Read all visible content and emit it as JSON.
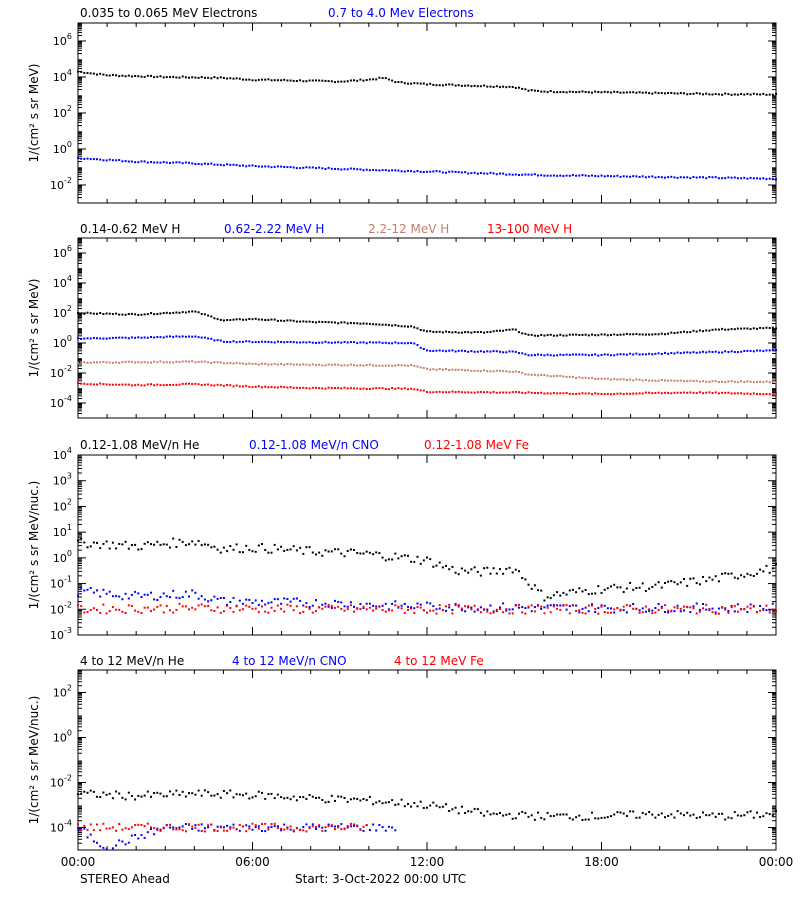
{
  "footer": {
    "left": "STEREO Ahead",
    "right": "Start:  3-Oct-2022 00:00 UTC"
  },
  "colors": {
    "black": "#000000",
    "blue": "#0000ff",
    "tan": "#c87d6a",
    "red": "#ff0000"
  },
  "chart_data": [
    {
      "type": "scatter",
      "ylabel": "1/(cm² s sr MeV)",
      "ylog": true,
      "ylim_exp": [
        -3,
        7
      ],
      "y_ticks_exp": [
        -2,
        0,
        2,
        4,
        6
      ],
      "series": [
        {
          "name": "0.035 to 0.065 MeV Electrons",
          "color": "#000000",
          "points": [
            [
              0,
              4.3
            ],
            [
              1,
              4.1
            ],
            [
              2,
              4.05
            ],
            [
              3,
              4.0
            ],
            [
              4,
              3.98
            ],
            [
              5,
              3.95
            ],
            [
              6,
              3.85
            ],
            [
              7,
              3.82
            ],
            [
              8,
              3.78
            ],
            [
              9,
              3.75
            ],
            [
              10,
              3.85
            ],
            [
              10.5,
              3.95
            ],
            [
              11,
              3.7
            ],
            [
              12,
              3.6
            ],
            [
              13,
              3.55
            ],
            [
              14,
              3.5
            ],
            [
              15,
              3.45
            ],
            [
              15.5,
              3.25
            ],
            [
              16,
              3.2
            ],
            [
              18,
              3.15
            ],
            [
              20,
              3.1
            ],
            [
              22,
              3.05
            ],
            [
              24,
              3.03
            ]
          ]
        },
        {
          "name": "0.7 to 4.0 Mev Electrons",
          "color": "#0000ff",
          "points": [
            [
              0,
              -0.5
            ],
            [
              2,
              -0.7
            ],
            [
              4,
              -0.8
            ],
            [
              6,
              -0.95
            ],
            [
              8,
              -1.05
            ],
            [
              10,
              -1.15
            ],
            [
              12,
              -1.25
            ],
            [
              14,
              -1.35
            ],
            [
              16,
              -1.45
            ],
            [
              18,
              -1.5
            ],
            [
              20,
              -1.55
            ],
            [
              22,
              -1.6
            ],
            [
              24,
              -1.65
            ]
          ]
        }
      ]
    },
    {
      "type": "scatter",
      "ylabel": "1/(cm² s sr MeV)",
      "ylog": true,
      "ylim_exp": [
        -5,
        7
      ],
      "y_ticks_exp": [
        -4,
        -2,
        0,
        2,
        4,
        6
      ],
      "series": [
        {
          "name": "0.14-0.62 MeV H",
          "color": "#000000",
          "points": [
            [
              0,
              2.0
            ],
            [
              2,
              1.9
            ],
            [
              4,
              2.1
            ],
            [
              5,
              1.5
            ],
            [
              6,
              1.6
            ],
            [
              8,
              1.4
            ],
            [
              10,
              1.3
            ],
            [
              11.5,
              1.1
            ],
            [
              12,
              0.75
            ],
            [
              14,
              0.7
            ],
            [
              15,
              0.9
            ],
            [
              15.5,
              0.5
            ],
            [
              18,
              0.55
            ],
            [
              20,
              0.6
            ],
            [
              22,
              0.9
            ],
            [
              24,
              1.0
            ]
          ]
        },
        {
          "name": "0.62-2.22 MeV H",
          "color": "#0000ff",
          "points": [
            [
              0,
              0.3
            ],
            [
              2,
              0.35
            ],
            [
              4,
              0.45
            ],
            [
              5,
              0.1
            ],
            [
              8,
              0.05
            ],
            [
              11.5,
              0.0
            ],
            [
              12,
              -0.5
            ],
            [
              15,
              -0.6
            ],
            [
              15.5,
              -0.8
            ],
            [
              18,
              -0.8
            ],
            [
              22,
              -0.6
            ],
            [
              24,
              -0.5
            ]
          ]
        },
        {
          "name": "2.2-12 MeV H",
          "color": "#c87d6a",
          "points": [
            [
              0,
              -1.3
            ],
            [
              4,
              -1.25
            ],
            [
              6,
              -1.4
            ],
            [
              8,
              -1.45
            ],
            [
              11.5,
              -1.5
            ],
            [
              12,
              -1.75
            ],
            [
              15,
              -1.9
            ],
            [
              15.5,
              -2.1
            ],
            [
              18,
              -2.4
            ],
            [
              21,
              -2.55
            ],
            [
              24,
              -2.6
            ]
          ]
        },
        {
          "name": "13-100 MeV H",
          "color": "#ff0000",
          "points": [
            [
              0,
              -2.7
            ],
            [
              2,
              -2.8
            ],
            [
              4,
              -2.75
            ],
            [
              6,
              -2.9
            ],
            [
              8,
              -3.0
            ],
            [
              11.5,
              -3.05
            ],
            [
              12,
              -3.25
            ],
            [
              15,
              -3.3
            ],
            [
              18,
              -3.4
            ],
            [
              21,
              -3.3
            ],
            [
              24,
              -3.4
            ]
          ]
        }
      ]
    },
    {
      "type": "scatter",
      "ylabel": "1/(cm² s sr MeV/nuc.)",
      "ylog": true,
      "ylim_exp": [
        -3,
        4
      ],
      "y_ticks_exp": [
        -3,
        -2,
        -1,
        0,
        1,
        2,
        3,
        4
      ],
      "series": [
        {
          "name": "0.12-1.08 MeV/n He",
          "color": "#000000",
          "points": [
            [
              0,
              0.6
            ],
            [
              2,
              0.45
            ],
            [
              4,
              0.65
            ],
            [
              5,
              0.35
            ],
            [
              6,
              0.4
            ],
            [
              8,
              0.25
            ],
            [
              10,
              0.15
            ],
            [
              12,
              -0.1
            ],
            [
              13,
              -0.5
            ],
            [
              14,
              -0.55
            ],
            [
              15,
              -0.4
            ],
            [
              16,
              -1.5
            ],
            [
              18,
              -1.2
            ],
            [
              20,
              -1.1
            ],
            [
              22,
              -0.8
            ],
            [
              24,
              -0.4
            ]
          ]
        },
        {
          "name": "0.12-1.08 MeV/n CNO",
          "color": "#0000ff",
          "points": [
            [
              0,
              -1.3
            ],
            [
              2,
              -1.5
            ],
            [
              4,
              -1.4
            ],
            [
              5,
              -1.7
            ],
            [
              8,
              -1.75
            ],
            [
              12,
              -1.9
            ],
            [
              16,
              -1.95
            ],
            [
              20,
              -1.95
            ],
            [
              24,
              -1.95
            ]
          ]
        },
        {
          "name": "0.12-1.08 MeV Fe",
          "color": "#ff0000",
          "points": [
            [
              0,
              -2.0
            ],
            [
              4,
              -1.95
            ],
            [
              8,
              -2.0
            ],
            [
              12,
              -2.0
            ],
            [
              16,
              -2.0
            ],
            [
              20,
              -2.0
            ],
            [
              24,
              -2.0
            ]
          ]
        }
      ]
    },
    {
      "type": "scatter",
      "ylabel": "1/(cm² s sr MeV/nuc.)",
      "ylog": true,
      "ylim_exp": [
        -5,
        3
      ],
      "y_ticks_exp": [
        -4,
        -2,
        0,
        2
      ],
      "series": [
        {
          "name": "4 to 12 MeV/n He",
          "color": "#000000",
          "points": [
            [
              0,
              -2.5
            ],
            [
              2,
              -2.6
            ],
            [
              4,
              -2.5
            ],
            [
              6,
              -2.55
            ],
            [
              8,
              -2.7
            ],
            [
              10,
              -2.8
            ],
            [
              12,
              -3.0
            ],
            [
              14,
              -3.4
            ],
            [
              16,
              -3.5
            ],
            [
              18,
              -3.5
            ],
            [
              20,
              -3.4
            ],
            [
              22,
              -3.5
            ],
            [
              24,
              -3.4
            ]
          ]
        },
        {
          "name": "4 to 12 MeV/n CNO",
          "color": "#0000ff",
          "points": [
            [
              0,
              -4.0
            ],
            [
              0.5,
              -4.5
            ],
            [
              1,
              -4.9
            ],
            [
              3,
              -4.0
            ],
            [
              6,
              -4.0
            ],
            [
              8,
              -4.0
            ],
            [
              10,
              -4.0
            ],
            [
              11,
              -4.0
            ]
          ]
        },
        {
          "name": "4 to 12 MeV Fe",
          "color": "#ff0000",
          "points": [
            [
              0,
              -4.0
            ],
            [
              2,
              -4.0
            ],
            [
              4,
              -4.0
            ],
            [
              6,
              -4.0
            ],
            [
              8,
              -4.0
            ],
            [
              10,
              -4.0
            ]
          ]
        }
      ]
    }
  ],
  "x_axis": {
    "xlim_hours": [
      0,
      24
    ],
    "tick_labels": [
      "00:00",
      "06:00",
      "12:00",
      "18:00",
      "00:00"
    ],
    "tick_hours": [
      0,
      6,
      12,
      18,
      24
    ]
  }
}
